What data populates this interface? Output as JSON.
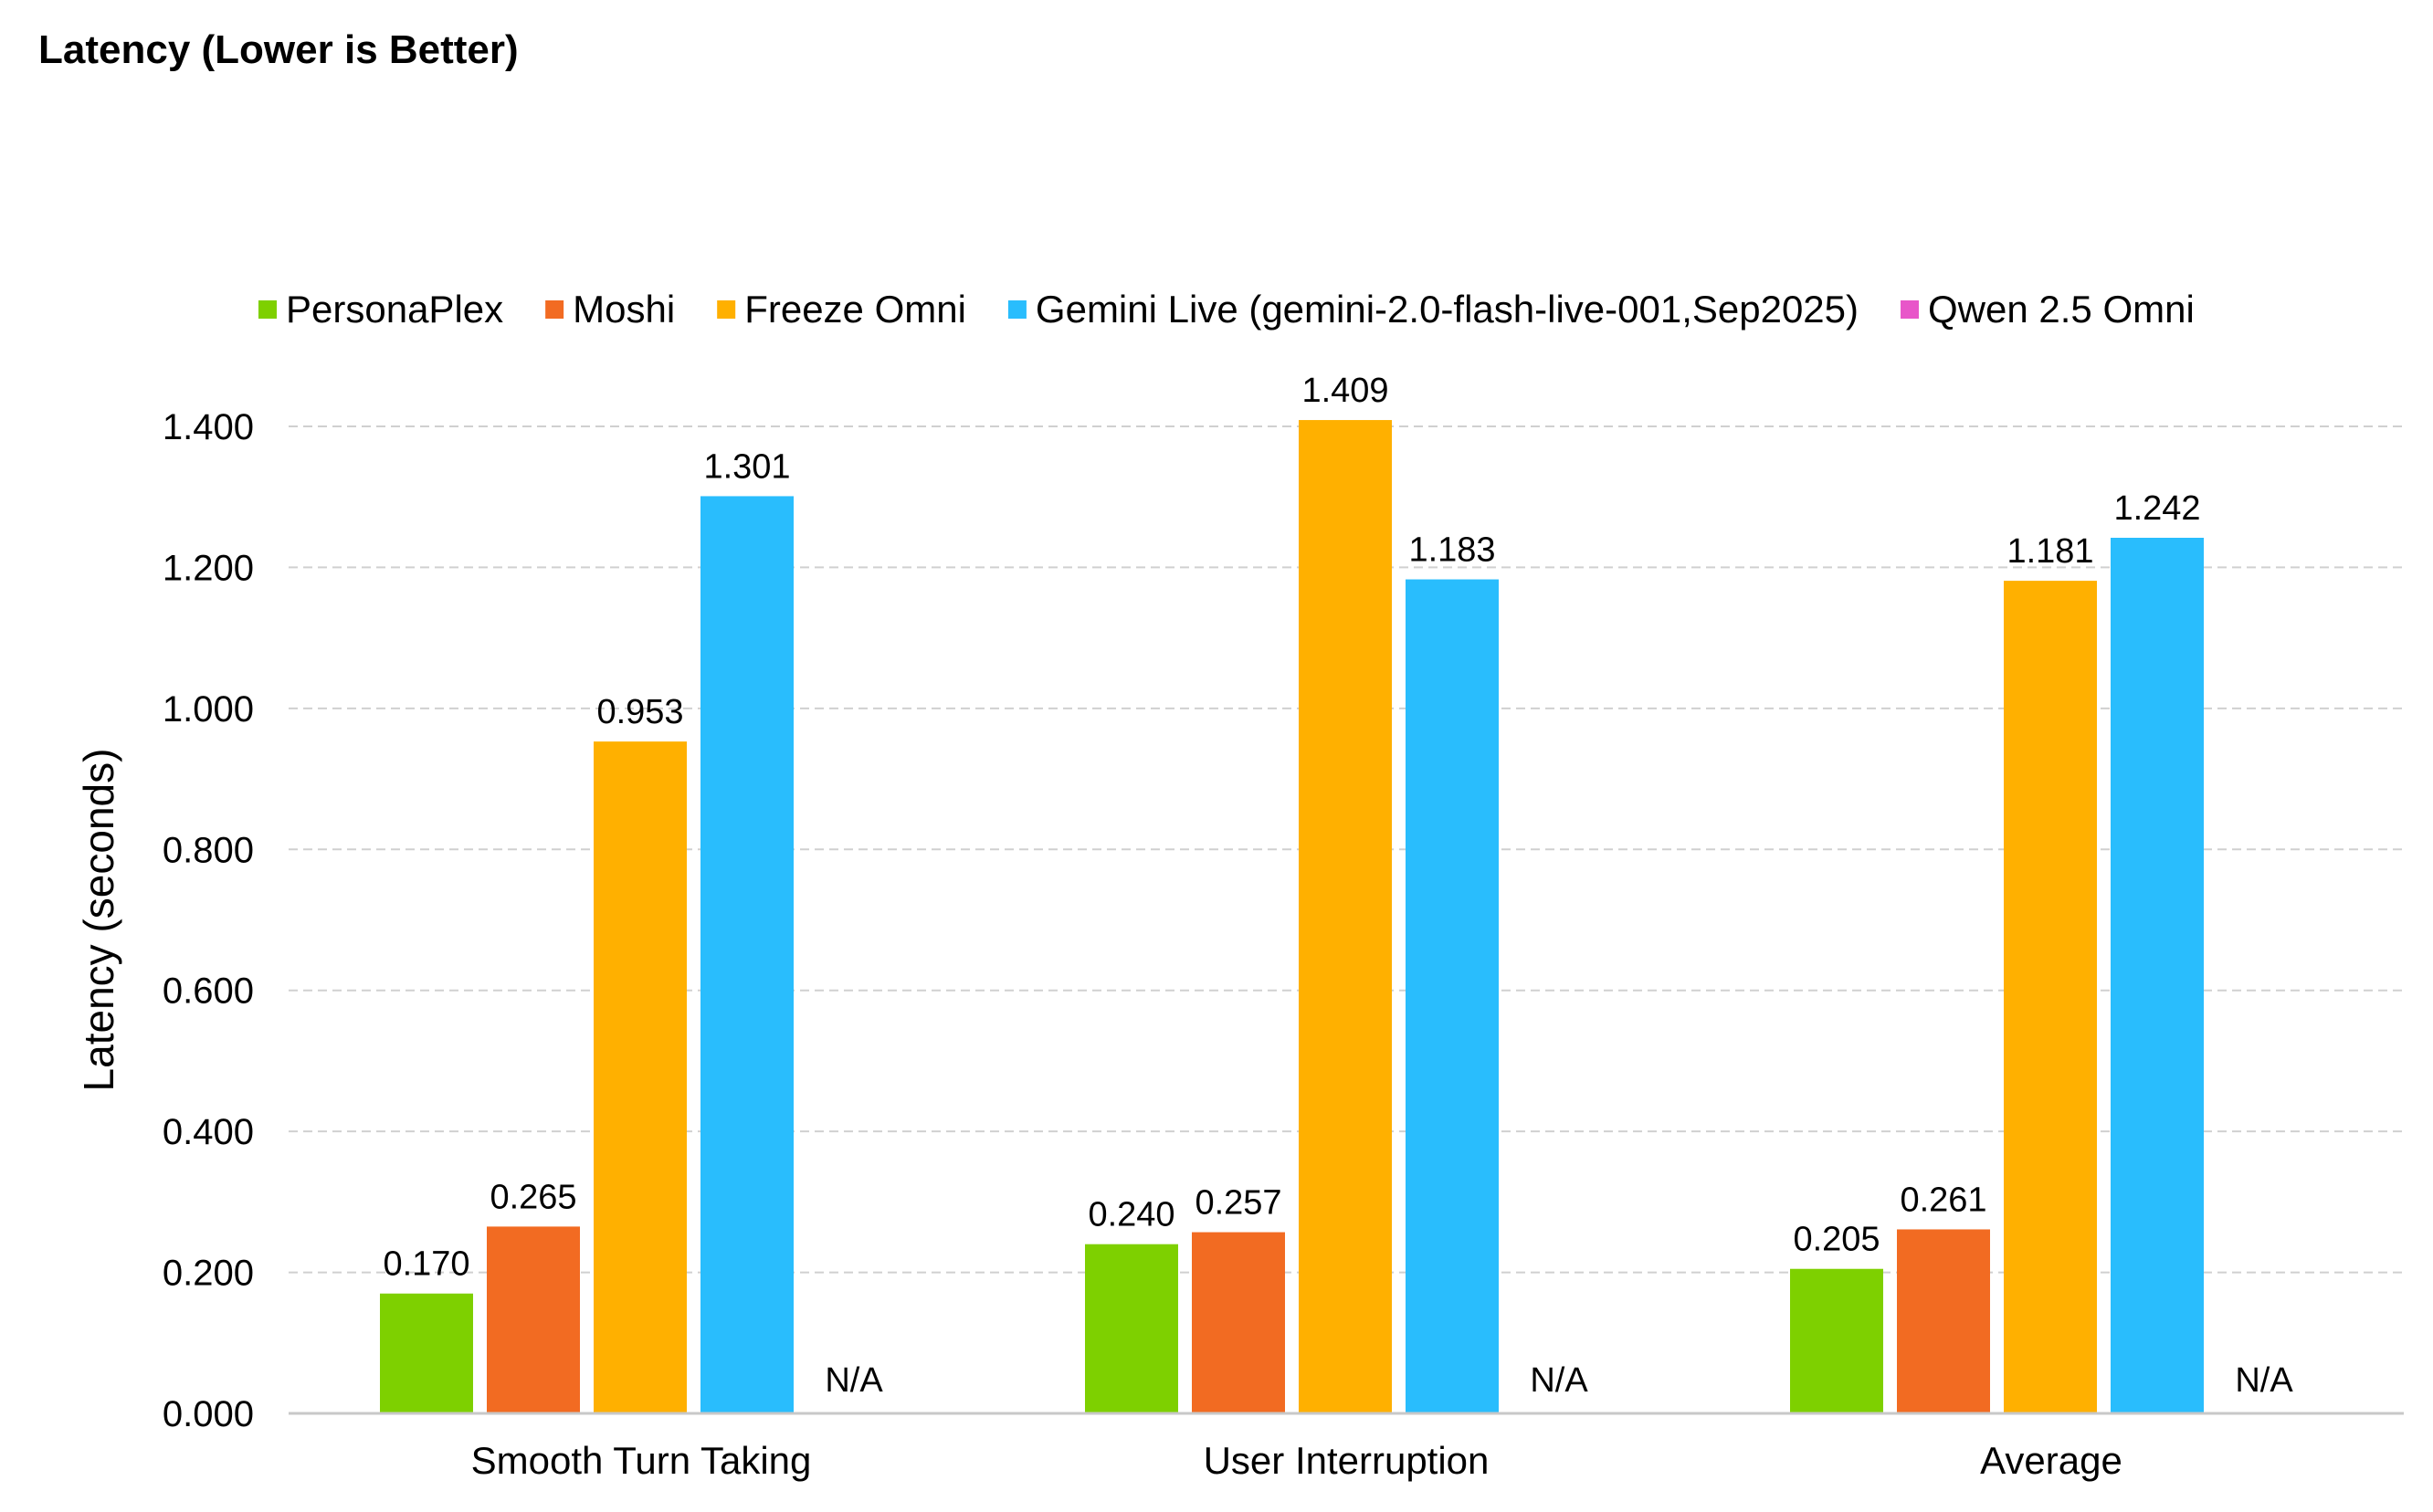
{
  "chart_data": {
    "type": "bar",
    "title": "Latency (Lower is Better)",
    "xlabel": "",
    "ylabel": "Latency (seconds)",
    "ylim": [
      0,
      1.4
    ],
    "yticks": [
      "0.000",
      "0.200",
      "0.400",
      "0.600",
      "0.800",
      "1.000",
      "1.200",
      "1.400"
    ],
    "grid": true,
    "legend_position": "top",
    "categories": [
      "Smooth Turn Taking",
      "User Interruption",
      "Average"
    ],
    "series": [
      {
        "name": "PersonaPlex",
        "color": "#7ed000",
        "values": [
          0.17,
          0.24,
          0.205
        ],
        "labels": [
          "0.170",
          "0.240",
          "0.205"
        ]
      },
      {
        "name": "Moshi",
        "color": "#f26b22",
        "values": [
          0.265,
          0.257,
          0.261
        ],
        "labels": [
          "0.265",
          "0.257",
          "0.261"
        ]
      },
      {
        "name": "Freeze Omni",
        "color": "#ffb000",
        "values": [
          0.953,
          1.409,
          1.181
        ],
        "labels": [
          "0.953",
          "1.409",
          "1.181"
        ]
      },
      {
        "name": "Gemini Live (gemini-2.0-flash-live-001,Sep2025)",
        "color": "#29bdfd",
        "values": [
          1.301,
          1.183,
          1.242
        ],
        "labels": [
          "1.301",
          "1.183",
          "1.242"
        ]
      },
      {
        "name": "Qwen 2.5 Omni",
        "color": "#e856c9",
        "values": [
          null,
          null,
          null
        ],
        "labels": [
          "N/A",
          "N/A",
          "N/A"
        ]
      }
    ]
  }
}
